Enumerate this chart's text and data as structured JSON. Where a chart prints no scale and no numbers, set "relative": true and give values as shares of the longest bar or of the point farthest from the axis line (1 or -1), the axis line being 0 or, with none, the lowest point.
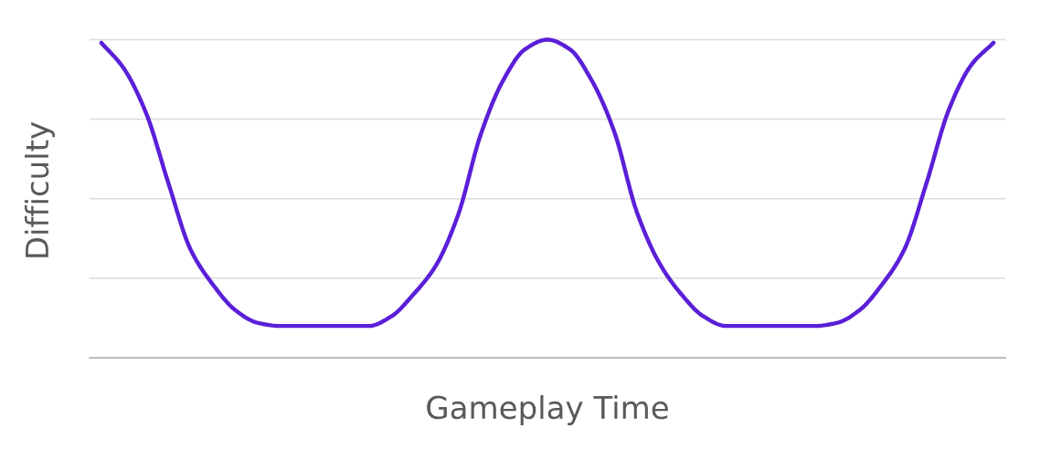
{
  "chart_data": {
    "type": "line",
    "xlabel": "Gameplay Time",
    "ylabel": "Difficulty",
    "relative": true,
    "grid": "y",
    "categories": [
      null,
      null,
      null,
      null,
      null,
      null,
      null,
      null,
      null,
      null,
      null,
      null,
      null,
      null,
      null,
      null,
      null,
      null,
      null,
      null,
      null,
      null,
      null,
      null,
      null,
      null,
      null,
      null,
      null,
      null,
      null,
      null,
      null,
      null,
      null,
      null,
      null,
      null,
      null,
      null,
      null
    ],
    "series": [
      {
        "color": "#5a1fd8",
        "values": [
          0.99,
          0.91,
          0.77,
          0.55,
          0.34,
          0.23,
          0.15,
          0.11,
          0.1,
          0.1,
          0.1,
          0.1,
          0.1,
          0.13,
          0.2,
          0.29,
          0.45,
          0.7,
          0.87,
          0.97,
          1.0,
          0.97,
          0.87,
          0.71,
          0.46,
          0.3,
          0.2,
          0.13,
          0.1,
          0.1,
          0.1,
          0.1,
          0.1,
          0.11,
          0.15,
          0.23,
          0.34,
          0.55,
          0.78,
          0.92,
          0.99
        ]
      }
    ]
  }
}
